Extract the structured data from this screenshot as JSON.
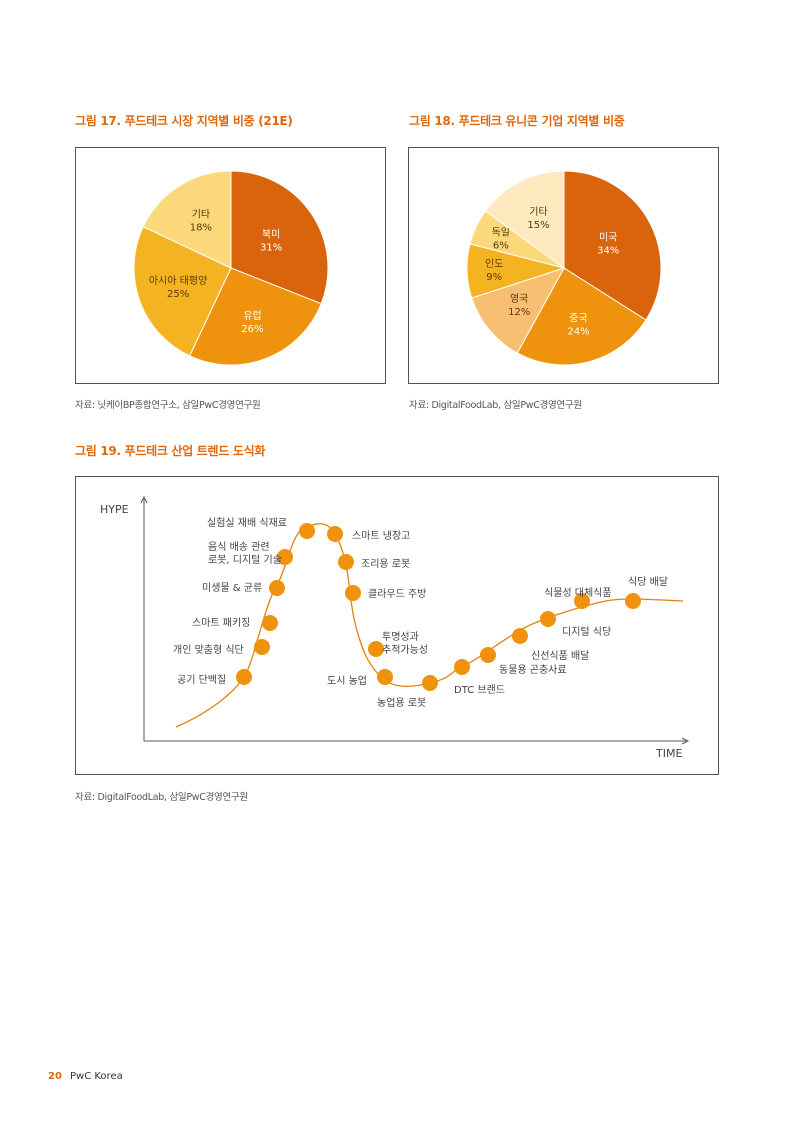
{
  "fig17": {
    "title": "그림 17. 푸드테크 시장 지역별 비중 (21E)",
    "source": "자료: 닛케이BP종합연구소, 삼일PwC경영연구원"
  },
  "fig18": {
    "title": "그림 18. 푸드테크 유니콘 기업 지역별 비중",
    "source": "자료: DigitalFoodLab, 삼일PwC경영연구원"
  },
  "fig19": {
    "title": "그림 19. 푸드테크 산업 트렌드 도식화",
    "source": "자료: DigitalFoodLab, 삼일PwC경영연구원"
  },
  "footer": {
    "page_number": "20",
    "brand": "PwC Korea"
  },
  "chart_data": [
    {
      "type": "pie",
      "labels": [
        "북미",
        "유럽",
        "아시아 태평양",
        "기타"
      ],
      "values": [
        31,
        26,
        25,
        18
      ],
      "value_labels": [
        "31%",
        "26%",
        "25%",
        "18%"
      ],
      "colors": [
        "#d9640c",
        "#ef920e",
        "#f4b320",
        "#fbd87a"
      ]
    },
    {
      "type": "pie",
      "labels": [
        "미국",
        "중국",
        "영국",
        "인도",
        "독일",
        "기타"
      ],
      "values": [
        34,
        24,
        12,
        9,
        6,
        15
      ],
      "value_labels": [
        "34%",
        "24%",
        "12%",
        "9%",
        "6%",
        "15%"
      ],
      "colors": [
        "#d9640c",
        "#ef920e",
        "#f8bf72",
        "#f4b320",
        "#fbd87a",
        "#fde9bd"
      ]
    },
    {
      "type": "line",
      "xlabel": "TIME",
      "ylabel": "HYPE",
      "curve_color": "#e0820f",
      "point_color": "#f0920e",
      "trends": [
        "공기 단백질",
        "개인 맞춤형 식단",
        "미생물 & 균류",
        "스마트 패키징",
        "음식 배송 관련\n로봇, 디지털 기술",
        "실험실 재배 식재료",
        "스마트 냉장고",
        "조리용 로봇",
        "클라우드 주방",
        "투명성과\n추적가능성",
        "도시 농업",
        "농업용 로봇",
        "DTC 브랜드",
        "동물용 곤충사료",
        "신선식품 배달",
        "디지털 식당",
        "식물성 대체식품",
        "식당 배달"
      ]
    }
  ]
}
